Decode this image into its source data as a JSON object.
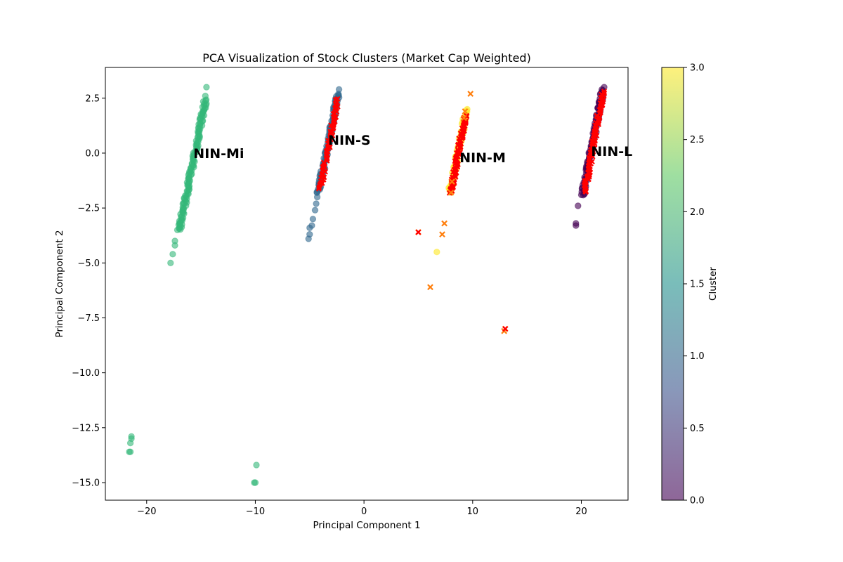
{
  "chart_data": {
    "type": "scatter",
    "title": "PCA Visualization of Stock Clusters (Market Cap Weighted)",
    "xlabel": "Principal Component 1",
    "ylabel": "Principal Component 2",
    "xlim": [
      -23.8,
      24.3
    ],
    "ylim": [
      -15.8,
      3.9
    ],
    "xticks": [
      -20,
      -10,
      0,
      10,
      20
    ],
    "yticks": [
      2.5,
      0.0,
      -2.5,
      -5.0,
      -7.5,
      -10.0,
      -12.5,
      -15.0
    ],
    "xtick_labels": [
      "−20",
      "−10",
      "0",
      "10",
      "20"
    ],
    "ytick_labels": [
      "2.5",
      "0.0",
      "−2.5",
      "−5.0",
      "−7.5",
      "−10.0",
      "−12.5",
      "−15.0"
    ],
    "grid": false,
    "point_alpha": 0.6,
    "colorbar": {
      "label": "Cluster",
      "min": 0.0,
      "max": 3.0,
      "ticks": [
        3.0,
        2.5,
        2.0,
        1.5,
        1.0,
        0.5,
        0.0
      ],
      "tick_labels": [
        "3.0",
        "2.5",
        "2.0",
        "1.5",
        "1.0",
        "0.5",
        "0.0"
      ],
      "colormap": [
        "#440154",
        "#3b528b",
        "#21918c",
        "#5ec962",
        "#fde725"
      ]
    },
    "clusters": [
      {
        "cluster": 2,
        "color": "#35b779",
        "band": {
          "x0": -17.0,
          "y0": -3.5,
          "x1": -14.6,
          "y1": 2.4,
          "n": 140
        },
        "extra_points": [
          [
            -14.5,
            3.0
          ],
          [
            -14.6,
            2.6
          ],
          [
            -17.4,
            -4.0
          ],
          [
            -17.4,
            -4.2
          ],
          [
            -17.6,
            -4.6
          ],
          [
            -17.8,
            -5.0
          ],
          [
            -17.0,
            -3.4
          ],
          [
            -16.9,
            -3.2
          ],
          [
            -21.4,
            -12.9
          ],
          [
            -21.4,
            -13.0
          ],
          [
            -21.5,
            -13.2
          ],
          [
            -21.6,
            -13.6
          ],
          [
            -21.5,
            -13.6
          ],
          [
            -9.9,
            -14.2
          ],
          [
            -10.0,
            -15.0
          ],
          [
            -10.1,
            -15.0
          ]
        ]
      },
      {
        "cluster": 1,
        "color": "#31688e",
        "band": {
          "x0": -4.2,
          "y0": -1.8,
          "x1": -2.4,
          "y1": 2.7,
          "n": 110
        },
        "extra_points": [
          [
            -2.3,
            2.9
          ],
          [
            -4.3,
            -2.0
          ],
          [
            -4.4,
            -2.3
          ],
          [
            -4.5,
            -2.6
          ],
          [
            -4.7,
            -3.0
          ],
          [
            -4.8,
            -3.3
          ],
          [
            -5.0,
            -3.4
          ],
          [
            -5.0,
            -3.7
          ],
          [
            -5.1,
            -3.9
          ]
        ]
      },
      {
        "cluster": 3,
        "color": "#fde725",
        "band": {
          "x0": 7.9,
          "y0": -1.8,
          "x1": 9.4,
          "y1": 1.9,
          "n": 80
        },
        "extra_points": [
          [
            9.5,
            2.0
          ],
          [
            6.7,
            -4.5
          ]
        ]
      },
      {
        "cluster": 0,
        "color": "#440154",
        "band": {
          "x0": 20.1,
          "y0": -1.9,
          "x1": 22.0,
          "y1": 2.9,
          "n": 110
        },
        "extra_points": [
          [
            22.1,
            3.0
          ],
          [
            19.7,
            -2.4
          ],
          [
            19.5,
            -3.2
          ],
          [
            19.5,
            -3.3
          ],
          [
            20.0,
            -1.9
          ]
        ]
      }
    ],
    "red_overlay_bands": [
      {
        "x0": -4.0,
        "y0": -1.6,
        "x1": -2.4,
        "y1": 2.5,
        "n": 70
      },
      {
        "x0": 8.0,
        "y0": -1.8,
        "x1": 9.3,
        "y1": 1.7,
        "n": 90
      },
      {
        "x0": 20.3,
        "y0": -1.8,
        "x1": 22.0,
        "y1": 2.8,
        "n": 100
      }
    ],
    "markers_x": [
      [
        9.8,
        2.7
      ],
      [
        9.3,
        1.9
      ],
      [
        9.2,
        1.6
      ],
      [
        8.0,
        -1.8
      ],
      [
        8.1,
        -1.3
      ],
      [
        7.4,
        -3.2
      ],
      [
        7.2,
        -3.7
      ],
      [
        5.0,
        -3.6
      ],
      [
        6.1,
        -6.1
      ],
      [
        13.0,
        -8.0
      ],
      [
        12.9,
        -8.1
      ]
    ],
    "markers_x_color": "#ff7f0e",
    "markers_x_inner": [
      [
        5.0,
        -3.6
      ],
      [
        13.0,
        -8.0
      ]
    ],
    "markers_x_inner_color": "#ff0000",
    "annotations": [
      {
        "text": "NIN-Mi",
        "x": -15.7,
        "y": 0.0
      },
      {
        "text": "NIN-S",
        "x": -3.3,
        "y": 0.6
      },
      {
        "text": "NIN-M",
        "x": 8.8,
        "y": -0.2
      },
      {
        "text": "NIN-L",
        "x": 20.9,
        "y": 0.1
      }
    ]
  }
}
